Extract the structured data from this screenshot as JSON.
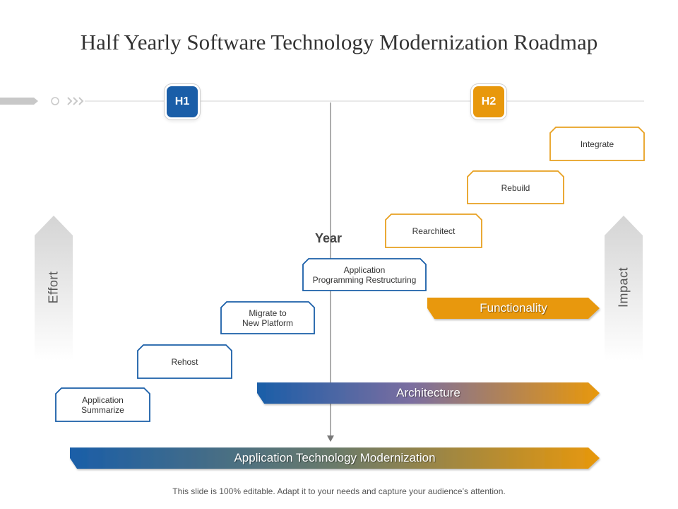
{
  "title": "Half Yearly Software Technology Modernization Roadmap",
  "phases": [
    {
      "label": "H1",
      "color": "#1a5ea8"
    },
    {
      "label": "H2",
      "color": "#e8980c"
    }
  ],
  "axis": {
    "label": "Year"
  },
  "side_arrows": {
    "left": "Effort",
    "right": "Impact"
  },
  "steps": [
    {
      "label": "Application\nSummarize"
    },
    {
      "label": "Rehost"
    },
    {
      "label": "Migrate to\nNew Platform"
    },
    {
      "label": "Application\nProgramming Restructuring"
    },
    {
      "label": "Rearchitect"
    },
    {
      "label": "Rebuild"
    },
    {
      "label": "Integrate"
    }
  ],
  "bands": {
    "functionality": "Functionality",
    "architecture": "Architecture",
    "modernization": "Application Technology Modernization"
  },
  "colors": {
    "blue": "#1a5ea8",
    "orange": "#e8980c",
    "box_outline_blue": "#1a5ea8",
    "box_outline_orange": "#e8a020"
  },
  "footer": "This slide is 100% editable. Adapt it to your needs and capture your audience’s attention."
}
